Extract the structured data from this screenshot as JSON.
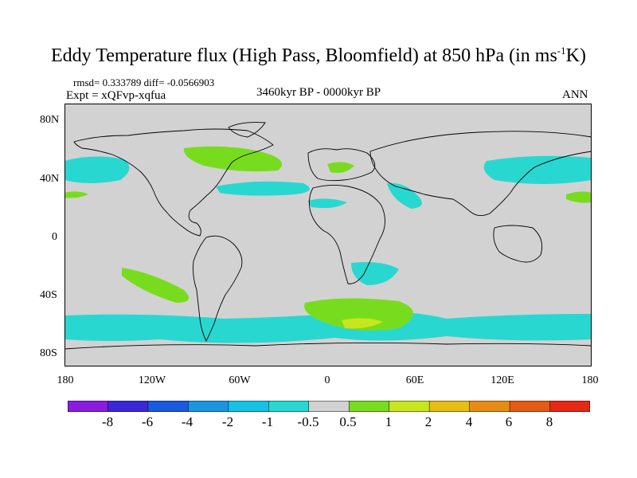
{
  "title": {
    "main": "Eddy Temperature flux (High Pass, Bloomfield) at 850 hPa (in ms",
    "sup": "-1",
    "end": "K)"
  },
  "stats_line": "rmsd= 0.333789 diff= -0.0566903",
  "experiment": "Expt = xQFvp-xqfua",
  "period": "3460kyr BP - 0000kyr BP",
  "season": "ANN",
  "lat_labels": [
    "80N",
    "40N",
    "0",
    "40S",
    "80S"
  ],
  "lon_labels": [
    "180",
    "120W",
    "60W",
    "0",
    "60E",
    "120E",
    "180"
  ],
  "colorbar": {
    "labels": [
      "-8",
      "-6",
      "-4",
      "-2",
      "-1",
      "-0.5",
      "0.5",
      "1",
      "2",
      "4",
      "6",
      "8"
    ],
    "colors": [
      "#8a1be0",
      "#3a28d8",
      "#1a5ae0",
      "#1a96e0",
      "#14c2e6",
      "#28d8d0",
      "#d2d2d2",
      "#78dc1e",
      "#c8e61e",
      "#e6be14",
      "#e68c14",
      "#e65a14",
      "#e62814"
    ]
  },
  "colors": {
    "land_background": "#d2d2d2",
    "coastline": "#000000",
    "negative_anomaly": "#28d8d0",
    "positive_anomaly": "#78dc1e",
    "strong_positive": "#c8e61e"
  }
}
